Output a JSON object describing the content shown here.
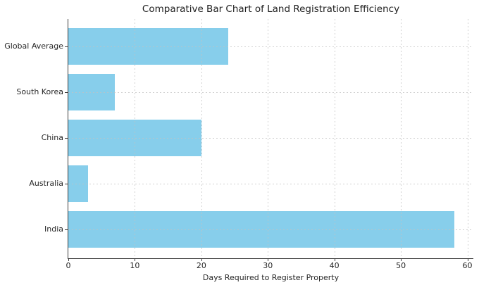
{
  "chart_data": {
    "type": "bar",
    "orientation": "horizontal",
    "title": "Comparative Bar Chart of Land Registration Efficiency",
    "xlabel": "Days Required to Register Property",
    "ylabel": "",
    "categories": [
      "Global Average",
      "South Korea",
      "China",
      "Australia",
      "India"
    ],
    "values": [
      24,
      7,
      20,
      3,
      58
    ],
    "xticks": [
      0,
      10,
      20,
      30,
      40,
      50,
      60
    ],
    "xlim": [
      0,
      60.9
    ],
    "grid": true,
    "legend": false,
    "colors": {
      "bar": "#87CEEB",
      "background": "#ffffff",
      "axis": "#3a3a3a",
      "text": "#262626",
      "grid": "#c2c2c2"
    }
  }
}
